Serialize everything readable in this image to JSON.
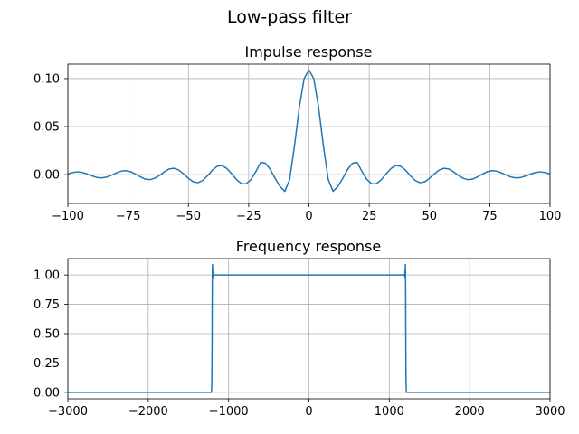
{
  "figure": {
    "title": "Low-pass filter"
  },
  "chart_data": [
    {
      "type": "line",
      "title": "Impulse response",
      "xlabel": "",
      "ylabel": "",
      "xlim": [
        -100,
        100
      ],
      "ylim": [
        -0.03,
        0.115
      ],
      "xticks": [
        -100,
        -75,
        -50,
        -25,
        0,
        25,
        50,
        75,
        100
      ],
      "xtick_labels": [
        "−100",
        "−75",
        "−50",
        "−25",
        "0",
        "25",
        "50",
        "75",
        "100"
      ],
      "yticks": [
        0.0,
        0.05,
        0.1
      ],
      "ytick_labels": [
        "0.00",
        "0.05",
        "0.10"
      ],
      "grid": true,
      "series": [
        {
          "color": "#1f77b4",
          "x": [
            -100,
            -98,
            -96,
            -94,
            -92,
            -90,
            -88,
            -86,
            -84,
            -82,
            -80,
            -78,
            -76,
            -74,
            -72,
            -70,
            -68,
            -66,
            -64,
            -62,
            -60,
            -58,
            -56,
            -54,
            -52,
            -50,
            -48,
            -46,
            -44,
            -42,
            -40,
            -38,
            -36,
            -34,
            -32,
            -30,
            -28,
            -26,
            -24,
            -22,
            -20,
            -18,
            -16,
            -14,
            -12,
            -10,
            -8,
            -6,
            -4,
            -2,
            0,
            2,
            4,
            6,
            8,
            10,
            12,
            14,
            16,
            18,
            20,
            22,
            24,
            26,
            28,
            30,
            32,
            34,
            36,
            38,
            40,
            42,
            44,
            46,
            48,
            50,
            52,
            54,
            56,
            58,
            60,
            62,
            64,
            66,
            68,
            70,
            72,
            74,
            76,
            78,
            80,
            82,
            84,
            86,
            88,
            90,
            92,
            94,
            96,
            98,
            100
          ],
          "y": [
            0.0007,
            0.0023,
            0.0029,
            0.0023,
            0.0007,
            -0.0013,
            -0.0029,
            -0.0034,
            -0.0026,
            -0.0007,
            0.0017,
            0.0036,
            0.0041,
            0.0031,
            0.0007,
            -0.0022,
            -0.0046,
            -0.0052,
            -0.0038,
            -0.0008,
            0.0029,
            0.0059,
            0.0066,
            0.0048,
            0.0008,
            -0.0038,
            -0.0075,
            -0.0084,
            -0.006,
            -0.0009,
            0.0048,
            0.0088,
            0.0094,
            0.0063,
            0.0008,
            -0.0053,
            -0.0094,
            -0.0095,
            -0.005,
            0.0033,
            0.0128,
            0.0118,
            0.0053,
            -0.004,
            -0.0123,
            -0.0174,
            -0.005,
            0.03,
            0.07,
            0.1,
            0.109,
            0.1,
            0.07,
            0.03,
            -0.005,
            -0.0174,
            -0.0123,
            -0.004,
            0.0053,
            0.0118,
            0.0128,
            0.0033,
            -0.005,
            -0.0095,
            -0.0094,
            -0.0053,
            0.0008,
            0.0063,
            0.0094,
            0.0088,
            0.0048,
            -0.0009,
            -0.006,
            -0.0084,
            -0.0075,
            -0.0038,
            0.0008,
            0.0048,
            0.0066,
            0.0059,
            0.0029,
            -0.0008,
            -0.0038,
            -0.0052,
            -0.0046,
            -0.0022,
            0.0007,
            0.0031,
            0.0041,
            0.0036,
            0.0017,
            -0.0007,
            -0.0026,
            -0.0034,
            -0.0029,
            -0.0013,
            0.0007,
            0.0023,
            0.0029,
            0.0023,
            0.0007
          ]
        }
      ]
    },
    {
      "type": "line",
      "title": "Frequency response",
      "xlabel": "",
      "ylabel": "",
      "xlim": [
        -3000,
        3000
      ],
      "ylim": [
        -0.055,
        1.14
      ],
      "xticks": [
        -3000,
        -2000,
        -1000,
        0,
        1000,
        2000,
        3000
      ],
      "xtick_labels": [
        "−3000",
        "−2000",
        "−1000",
        "0",
        "1000",
        "2000",
        "3000"
      ],
      "yticks": [
        0.0,
        0.25,
        0.5,
        0.75,
        1.0
      ],
      "ytick_labels": [
        "0.00",
        "0.25",
        "0.50",
        "0.75",
        "1.00"
      ],
      "grid": true,
      "series": [
        {
          "color": "#1f77b4",
          "x": [
            -3000,
            -1215,
            -1212,
            -1208,
            -1205,
            -1203,
            -1200,
            -1198,
            -1196,
            -1193,
            -1190,
            -1180,
            -1000,
            -600,
            0,
            600,
            1000,
            1180,
            1190,
            1193,
            1196,
            1198,
            1200,
            1203,
            1205,
            1208,
            1212,
            1215,
            3000
          ],
          "y": [
            0.0,
            0.0,
            0.01,
            0.1,
            0.5,
            0.95,
            1.09,
            0.97,
            1.04,
            0.99,
            1.005,
            1.0,
            1.0,
            1.0,
            1.0,
            1.0,
            1.0,
            1.0,
            1.005,
            0.99,
            1.04,
            0.97,
            1.09,
            0.95,
            0.5,
            0.1,
            0.01,
            0.0,
            0.0
          ]
        }
      ]
    }
  ]
}
